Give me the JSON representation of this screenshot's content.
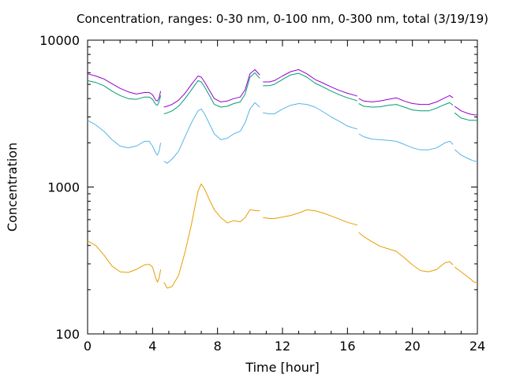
{
  "chart_data": {
    "type": "line",
    "title": "Concentration, ranges: 0-30 nm, 0-100 nm, 0-300 nm, total (3/19/19)",
    "xlabel": "Time [hour]",
    "ylabel": "Concentration",
    "xlim": [
      0,
      24
    ],
    "ylim": [
      100,
      10000
    ],
    "yscale": "log",
    "grid": false,
    "legend": "none",
    "xticks": [
      0,
      4,
      8,
      12,
      16,
      20,
      24
    ],
    "xtick_labels": [
      "0",
      "4",
      "8",
      "12",
      "16",
      "20",
      "24"
    ],
    "yticks": [
      100,
      1000,
      10000
    ],
    "ytick_labels": [
      "100",
      "1000",
      "10000"
    ],
    "series": [
      {
        "color": "#e69f00",
        "segments": [
          [
            [
              0,
              430
            ],
            [
              0.5,
              400
            ],
            [
              1,
              345
            ],
            [
              1.5,
              290
            ],
            [
              2,
              265
            ],
            [
              2.5,
              262
            ],
            [
              3,
              275
            ],
            [
              3.5,
              295
            ],
            [
              3.8,
              298
            ],
            [
              4,
              285
            ],
            [
              4.2,
              240
            ],
            [
              4.3,
              225
            ],
            [
              4.4,
              240
            ],
            [
              4.5,
              275
            ]
          ],
          [
            [
              4.7,
              225
            ],
            [
              4.9,
              205
            ],
            [
              5.2,
              210
            ],
            [
              5.6,
              250
            ],
            [
              6,
              360
            ],
            [
              6.4,
              560
            ],
            [
              6.8,
              940
            ],
            [
              7.0,
              1050
            ],
            [
              7.2,
              970
            ],
            [
              7.5,
              820
            ],
            [
              7.8,
              700
            ],
            [
              8.2,
              620
            ],
            [
              8.6,
              570
            ],
            [
              9.0,
              590
            ],
            [
              9.4,
              580
            ],
            [
              9.7,
              620
            ],
            [
              10,
              700
            ],
            [
              10.4,
              690
            ],
            [
              10.6,
              690
            ]
          ],
          [
            [
              10.8,
              620
            ],
            [
              11.2,
              610
            ],
            [
              11.5,
              610
            ],
            [
              12,
              625
            ],
            [
              12.5,
              640
            ],
            [
              13,
              665
            ],
            [
              13.5,
              700
            ],
            [
              14,
              690
            ],
            [
              14.5,
              665
            ],
            [
              15,
              635
            ],
            [
              15.5,
              605
            ],
            [
              16,
              575
            ],
            [
              16.5,
              555
            ],
            [
              16.6,
              550
            ]
          ],
          [
            [
              16.7,
              490
            ],
            [
              17,
              460
            ],
            [
              17.5,
              425
            ],
            [
              18,
              395
            ],
            [
              18.5,
              380
            ],
            [
              19,
              365
            ],
            [
              19.5,
              330
            ],
            [
              20,
              295
            ],
            [
              20.5,
              270
            ],
            [
              21,
              265
            ],
            [
              21.5,
              275
            ],
            [
              22,
              305
            ],
            [
              22.3,
              310
            ],
            [
              22.5,
              295
            ]
          ],
          [
            [
              22.6,
              285
            ],
            [
              23,
              265
            ],
            [
              23.5,
              240
            ],
            [
              23.8,
              225
            ],
            [
              24,
              224
            ]
          ]
        ]
      },
      {
        "color": "#56b4e9",
        "segments": [
          [
            [
              0,
              2850
            ],
            [
              0.5,
              2650
            ],
            [
              1,
              2400
            ],
            [
              1.5,
              2100
            ],
            [
              2,
              1900
            ],
            [
              2.5,
              1850
            ],
            [
              3,
              1900
            ],
            [
              3.5,
              2050
            ],
            [
              3.8,
              2050
            ],
            [
              4,
              1900
            ],
            [
              4.2,
              1700
            ],
            [
              4.3,
              1650
            ],
            [
              4.4,
              1750
            ],
            [
              4.5,
              2000
            ]
          ],
          [
            [
              4.7,
              1500
            ],
            [
              4.9,
              1450
            ],
            [
              5.2,
              1550
            ],
            [
              5.6,
              1750
            ],
            [
              6,
              2200
            ],
            [
              6.4,
              2750
            ],
            [
              6.8,
              3300
            ],
            [
              7.0,
              3400
            ],
            [
              7.2,
              3150
            ],
            [
              7.5,
              2700
            ],
            [
              7.8,
              2300
            ],
            [
              8.2,
              2100
            ],
            [
              8.6,
              2150
            ],
            [
              9.0,
              2300
            ],
            [
              9.4,
              2400
            ],
            [
              9.7,
              2750
            ],
            [
              10,
              3400
            ],
            [
              10.3,
              3750
            ],
            [
              10.6,
              3500
            ]
          ],
          [
            [
              10.8,
              3200
            ],
            [
              11.2,
              3150
            ],
            [
              11.5,
              3150
            ],
            [
              12,
              3400
            ],
            [
              12.5,
              3600
            ],
            [
              13,
              3700
            ],
            [
              13.5,
              3650
            ],
            [
              14,
              3500
            ],
            [
              14.5,
              3250
            ],
            [
              15,
              3000
            ],
            [
              15.5,
              2800
            ],
            [
              16,
              2600
            ],
            [
              16.5,
              2500
            ],
            [
              16.6,
              2490
            ]
          ],
          [
            [
              16.7,
              2300
            ],
            [
              17,
              2200
            ],
            [
              17.5,
              2120
            ],
            [
              18,
              2100
            ],
            [
              18.5,
              2080
            ],
            [
              19,
              2050
            ],
            [
              19.5,
              1950
            ],
            [
              20,
              1850
            ],
            [
              20.5,
              1790
            ],
            [
              21,
              1790
            ],
            [
              21.5,
              1850
            ],
            [
              22,
              2000
            ],
            [
              22.3,
              2050
            ],
            [
              22.5,
              1950
            ]
          ],
          [
            [
              22.6,
              1800
            ],
            [
              23,
              1650
            ],
            [
              23.5,
              1550
            ],
            [
              23.8,
              1500
            ],
            [
              24,
              1500
            ]
          ]
        ]
      },
      {
        "color": "#009e73",
        "segments": [
          [
            [
              0,
              5300
            ],
            [
              0.5,
              5150
            ],
            [
              1,
              4900
            ],
            [
              1.5,
              4500
            ],
            [
              2,
              4200
            ],
            [
              2.5,
              4000
            ],
            [
              3,
              3950
            ],
            [
              3.5,
              4100
            ],
            [
              3.8,
              4100
            ],
            [
              4,
              3950
            ],
            [
              4.2,
              3650
            ],
            [
              4.3,
              3600
            ],
            [
              4.4,
              3800
            ],
            [
              4.5,
              4200
            ]
          ],
          [
            [
              4.7,
              3150
            ],
            [
              4.9,
              3200
            ],
            [
              5.2,
              3300
            ],
            [
              5.6,
              3550
            ],
            [
              6,
              4000
            ],
            [
              6.4,
              4600
            ],
            [
              6.8,
              5300
            ],
            [
              7.0,
              5200
            ],
            [
              7.2,
              4800
            ],
            [
              7.5,
              4200
            ],
            [
              7.8,
              3650
            ],
            [
              8.2,
              3500
            ],
            [
              8.6,
              3550
            ],
            [
              9.0,
              3700
            ],
            [
              9.4,
              3800
            ],
            [
              9.7,
              4300
            ],
            [
              10,
              5600
            ],
            [
              10.3,
              6000
            ],
            [
              10.6,
              5500
            ]
          ],
          [
            [
              10.8,
              4900
            ],
            [
              11.2,
              4900
            ],
            [
              11.5,
              5000
            ],
            [
              12,
              5400
            ],
            [
              12.5,
              5800
            ],
            [
              13,
              5950
            ],
            [
              13.5,
              5600
            ],
            [
              14,
              5100
            ],
            [
              14.5,
              4800
            ],
            [
              15,
              4500
            ],
            [
              15.5,
              4250
            ],
            [
              16,
              4050
            ],
            [
              16.5,
              3900
            ],
            [
              16.6,
              3850
            ]
          ],
          [
            [
              16.7,
              3700
            ],
            [
              17,
              3550
            ],
            [
              17.5,
              3500
            ],
            [
              18,
              3520
            ],
            [
              18.5,
              3600
            ],
            [
              19,
              3650
            ],
            [
              19.5,
              3500
            ],
            [
              20,
              3350
            ],
            [
              20.5,
              3300
            ],
            [
              21,
              3300
            ],
            [
              21.5,
              3450
            ],
            [
              22,
              3650
            ],
            [
              22.3,
              3750
            ],
            [
              22.5,
              3600
            ]
          ],
          [
            [
              22.6,
              3200
            ],
            [
              23,
              2950
            ],
            [
              23.5,
              2850
            ],
            [
              23.8,
              2850
            ],
            [
              24,
              2850
            ]
          ]
        ]
      },
      {
        "color": "#9400d3",
        "segments": [
          [
            [
              0,
              5900
            ],
            [
              0.5,
              5700
            ],
            [
              1,
              5450
            ],
            [
              1.5,
              5050
            ],
            [
              2,
              4700
            ],
            [
              2.5,
              4450
            ],
            [
              3,
              4300
            ],
            [
              3.5,
              4400
            ],
            [
              3.8,
              4400
            ],
            [
              4,
              4250
            ],
            [
              4.2,
              3900
            ],
            [
              4.3,
              3850
            ],
            [
              4.4,
              4050
            ],
            [
              4.5,
              4500
            ]
          ],
          [
            [
              4.7,
              3500
            ],
            [
              4.9,
              3550
            ],
            [
              5.2,
              3650
            ],
            [
              5.6,
              3900
            ],
            [
              6,
              4350
            ],
            [
              6.4,
              5000
            ],
            [
              6.8,
              5700
            ],
            [
              7.0,
              5600
            ],
            [
              7.2,
              5200
            ],
            [
              7.5,
              4550
            ],
            [
              7.8,
              4000
            ],
            [
              8.2,
              3800
            ],
            [
              8.6,
              3850
            ],
            [
              9.0,
              4000
            ],
            [
              9.4,
              4100
            ],
            [
              9.7,
              4600
            ],
            [
              10,
              5900
            ],
            [
              10.3,
              6300
            ],
            [
              10.6,
              5800
            ]
          ],
          [
            [
              10.8,
              5200
            ],
            [
              11.2,
              5200
            ],
            [
              11.5,
              5300
            ],
            [
              12,
              5700
            ],
            [
              12.5,
              6100
            ],
            [
              13,
              6300
            ],
            [
              13.5,
              5900
            ],
            [
              14,
              5400
            ],
            [
              14.5,
              5100
            ],
            [
              15,
              4800
            ],
            [
              15.5,
              4550
            ],
            [
              16,
              4350
            ],
            [
              16.5,
              4200
            ],
            [
              16.6,
              4150
            ]
          ],
          [
            [
              16.7,
              4000
            ],
            [
              17,
              3850
            ],
            [
              17.5,
              3800
            ],
            [
              18,
              3850
            ],
            [
              18.5,
              3950
            ],
            [
              19,
              4050
            ],
            [
              19.5,
              3850
            ],
            [
              20,
              3700
            ],
            [
              20.5,
              3650
            ],
            [
              21,
              3650
            ],
            [
              21.5,
              3800
            ],
            [
              22,
              4050
            ],
            [
              22.3,
              4200
            ],
            [
              22.5,
              4050
            ]
          ],
          [
            [
              22.6,
              3550
            ],
            [
              23,
              3300
            ],
            [
              23.5,
              3150
            ],
            [
              23.8,
              3100
            ],
            [
              24,
              3100
            ]
          ]
        ]
      }
    ]
  }
}
